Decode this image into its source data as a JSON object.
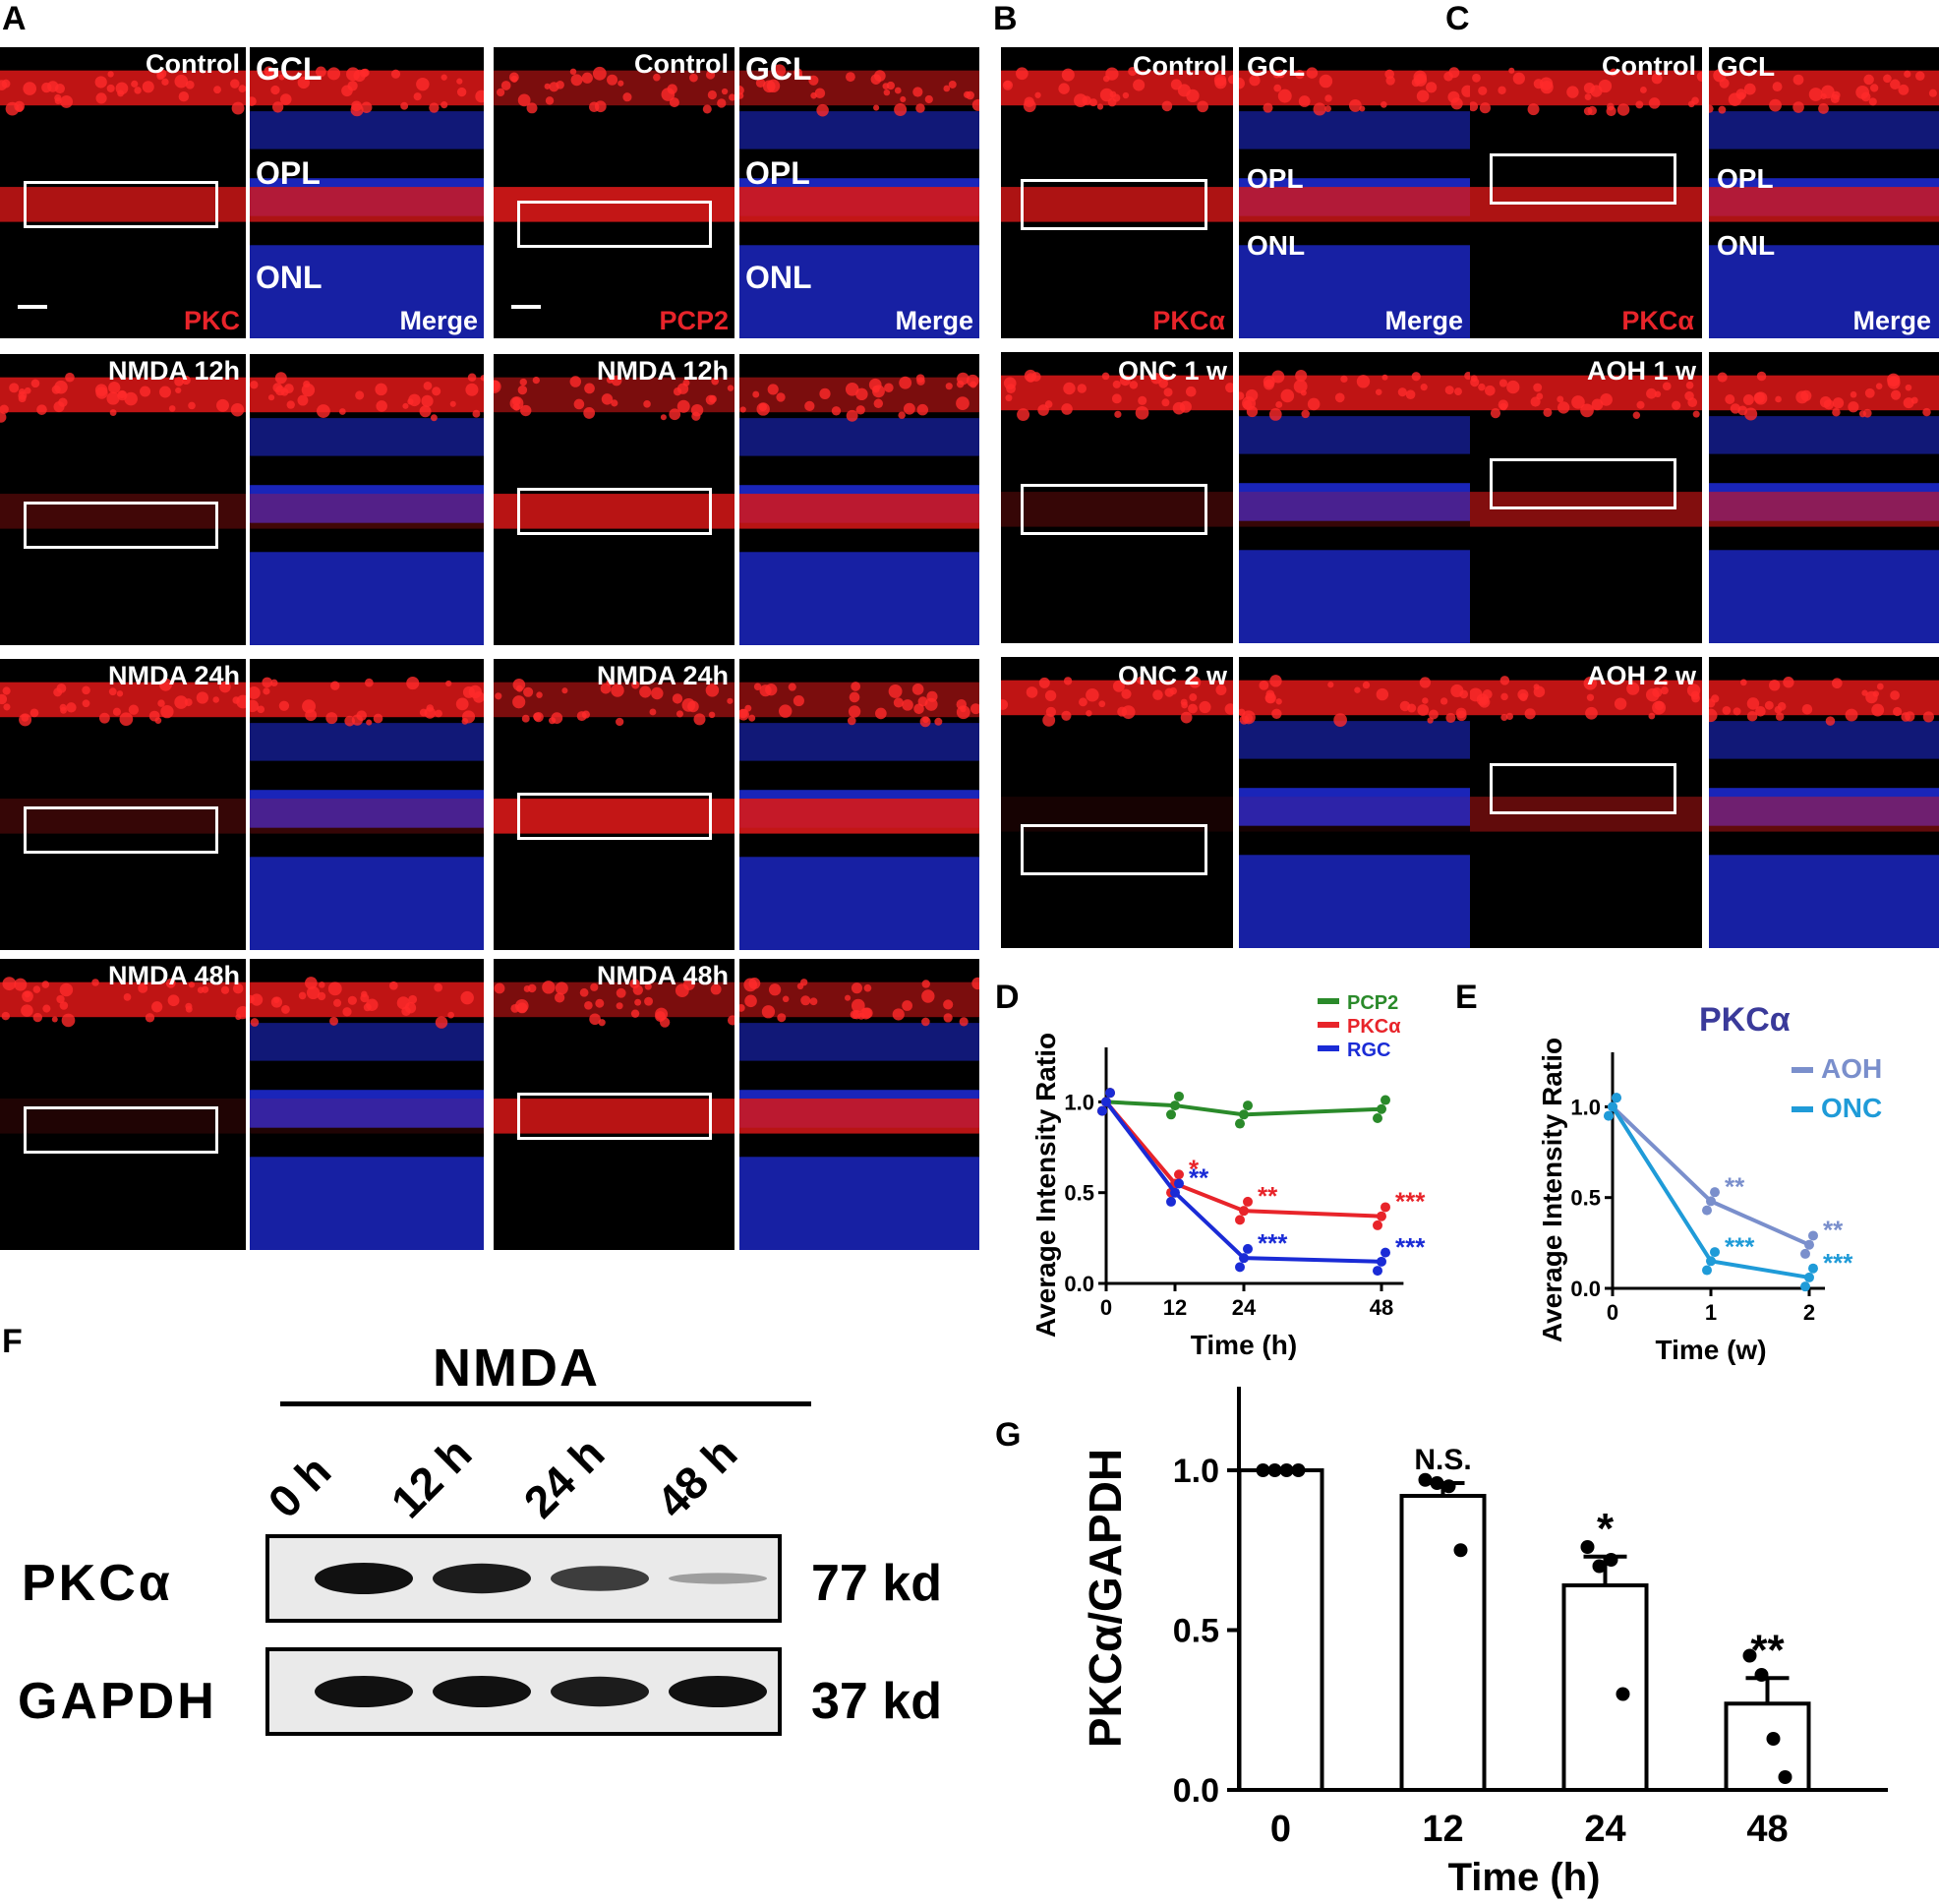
{
  "panel_labels": {
    "a": "A",
    "b": "B",
    "c": "C",
    "d": "D",
    "e": "E",
    "f": "F",
    "g": "G"
  },
  "colors": {
    "red": "#e8242a",
    "blue": "#1a2bd6",
    "green": "#2a8a2a",
    "aoh": "#7a8fcc",
    "onc": "#1f9bd8",
    "pkc_title": "#3a3a9a"
  },
  "layers": {
    "gcl": "GCL",
    "opl": "OPL",
    "onl": "ONL"
  },
  "panel_a": {
    "stain1": "PKC",
    "stain2": "PCP2",
    "merge": "Merge",
    "rows": [
      "Control",
      "NMDA 12h",
      "NMDA 24h",
      "NMDA 48h"
    ]
  },
  "panel_b": {
    "stain": "PKCα",
    "merge": "Merge",
    "rows": [
      "Control",
      "ONC 1 w",
      "ONC 2 w"
    ]
  },
  "panel_c": {
    "stain": "PKCα",
    "merge": "Merge",
    "rows": [
      "Control",
      "AOH 1 w",
      "AOH 2 w"
    ]
  },
  "chart_data": [
    {
      "panel": "D",
      "type": "line",
      "xlabel": "Time (h)",
      "ylabel": "Average Intensity Ratio",
      "x": [
        0,
        12,
        24,
        48
      ],
      "xticks": [
        "0",
        "12",
        "24",
        "48"
      ],
      "yticks": [
        "0.0",
        "0.5",
        "1.0"
      ],
      "ylim": [
        0,
        1.3
      ],
      "series": [
        {
          "name": "PCP2",
          "values": [
            1.0,
            0.98,
            0.93,
            0.96
          ],
          "sig": [
            "",
            "",
            "",
            ""
          ]
        },
        {
          "name": "PKCα",
          "values": [
            1.0,
            0.55,
            0.4,
            0.37
          ],
          "sig": [
            "",
            "*",
            "**",
            "***"
          ]
        },
        {
          "name": "RGC",
          "values": [
            1.0,
            0.5,
            0.14,
            0.12
          ],
          "sig": [
            "",
            "**",
            "***",
            "***"
          ]
        }
      ],
      "legend": "top-right"
    },
    {
      "panel": "E",
      "type": "line",
      "title": "PKCα",
      "xlabel": "Time (w)",
      "ylabel": "Average Intensity Ratio",
      "x": [
        0,
        1,
        2
      ],
      "xticks": [
        "0",
        "1",
        "2"
      ],
      "yticks": [
        "0.0",
        "0.5",
        "1.0"
      ],
      "ylim": [
        0,
        1.3
      ],
      "series": [
        {
          "name": "AOH",
          "values": [
            1.0,
            0.48,
            0.24
          ],
          "sig": [
            "",
            "**",
            "**"
          ]
        },
        {
          "name": "ONC",
          "values": [
            1.0,
            0.15,
            0.06
          ],
          "sig": [
            "",
            "***",
            "***"
          ]
        }
      ],
      "legend": "top-right"
    },
    {
      "panel": "G",
      "type": "bar",
      "xlabel": "Time (h)",
      "ylabel": "PKCα/GAPDH",
      "categories": [
        "0",
        "12",
        "24",
        "48"
      ],
      "values": [
        1.0,
        0.92,
        0.64,
        0.27
      ],
      "errors": [
        0.0,
        0.04,
        0.09,
        0.08
      ],
      "points": [
        [
          1,
          1,
          1,
          1
        ],
        [
          0.97,
          0.96,
          0.95,
          0.75
        ],
        [
          0.76,
          0.7,
          0.72,
          0.3
        ],
        [
          0.42,
          0.36,
          0.16,
          0.04
        ]
      ],
      "sig": [
        "",
        "N.S.",
        "*",
        "**"
      ],
      "yticks": [
        "0.0",
        "0.5",
        "1.0"
      ],
      "ylim": [
        0,
        1.2
      ]
    }
  ],
  "western": {
    "treatment": "NMDA",
    "lanes": [
      "0 h",
      "12 h",
      "24 h",
      "48 h"
    ],
    "proteins": [
      {
        "name": "PKCα",
        "size": "77 kd",
        "intensity": [
          1,
          0.95,
          0.8,
          0.3
        ]
      },
      {
        "name": "GAPDH",
        "size": "37 kd",
        "intensity": [
          1,
          1,
          0.95,
          1
        ]
      }
    ]
  }
}
